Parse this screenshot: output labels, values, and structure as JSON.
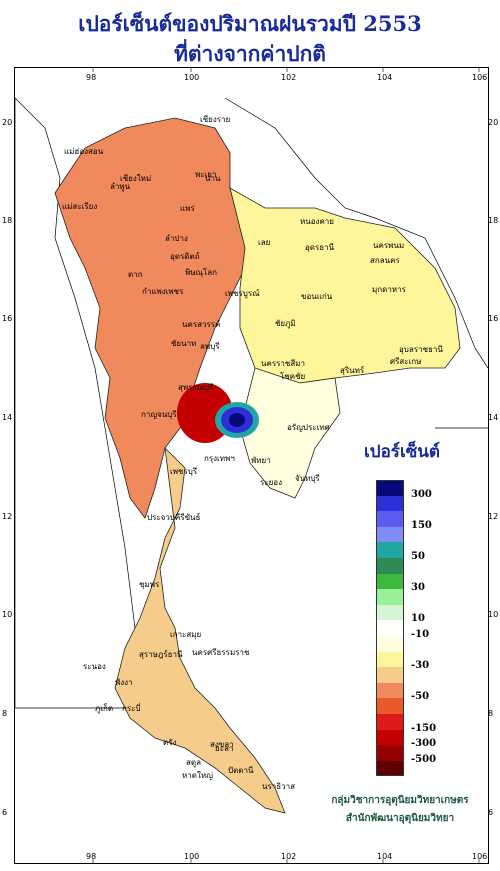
{
  "title_line1": "เปอร์เซ็นต์ของปริมาณฝนรวมปี  2553",
  "title_line2": "ที่ต่างจากค่าปกติ",
  "x_ticks": [
    "98",
    "100",
    "102",
    "104",
    "106"
  ],
  "y_ticks": [
    "20",
    "18",
    "16",
    "14",
    "12",
    "10",
    "8",
    "6"
  ],
  "legend": {
    "title": "เปอร์เซ็นต์",
    "colors": [
      "#08087a",
      "#2f2fd9",
      "#5c5cf0",
      "#7f8cf6",
      "#21a5a5",
      "#2e8b57",
      "#3cb83c",
      "#99ee99",
      "#d6f5d6",
      "#ffffff",
      "#ffffe0",
      "#fff59a",
      "#f5cc8a",
      "#f08a5d",
      "#e85a2a",
      "#e01a1a",
      "#c40000",
      "#960000",
      "#5e0000"
    ],
    "labels": [
      "300",
      "150",
      "50",
      "30",
      "10",
      "-10",
      "-30",
      "-50",
      "-150",
      "-300",
      "-500"
    ]
  },
  "credit_line1": "กลุ่มวิชาการอุตุนิยมวิทยาเกษตร",
  "credit_line2": "สำนักพัฒนาอุตุนิยมวิทยา",
  "places": [
    {
      "name": "เชียงราย"
    },
    {
      "name": "เชียงใหม่"
    },
    {
      "name": "แม่ฮ่องสอน"
    },
    {
      "name": "ลำพูน"
    },
    {
      "name": "พะเยา"
    },
    {
      "name": "น่าน"
    },
    {
      "name": "แม่สะเรียง"
    },
    {
      "name": "แพร่"
    },
    {
      "name": "ลำปาง"
    },
    {
      "name": "อุตรดิตถ์"
    },
    {
      "name": "หนองคาย"
    },
    {
      "name": "เลย"
    },
    {
      "name": "อุดรธานี"
    },
    {
      "name": "นครพนม"
    },
    {
      "name": "สกลนคร"
    },
    {
      "name": "ตาก"
    },
    {
      "name": "พิษณุโลก"
    },
    {
      "name": "มุกดาหาร"
    },
    {
      "name": "กำแพงเพชร"
    },
    {
      "name": "เพชรบูรณ์"
    },
    {
      "name": "ขอนแก่น"
    },
    {
      "name": "นครสวรรค์"
    },
    {
      "name": "ชัยภูมิ"
    },
    {
      "name": "อุบลราชธานี"
    },
    {
      "name": "ชัยนาท"
    },
    {
      "name": "ลพบุรี"
    },
    {
      "name": "นครราชสีมา"
    },
    {
      "name": "สุรินทร์"
    },
    {
      "name": "สุพรรณบุรี"
    },
    {
      "name": "ศรีสะเกษ"
    },
    {
      "name": "กาญจนบุรี"
    },
    {
      "name": "โชคชัย"
    },
    {
      "name": "กรุงเทพฯ"
    },
    {
      "name": "อรัญประเทศ"
    },
    {
      "name": "เพชรบุรี"
    },
    {
      "name": "พัทยา"
    },
    {
      "name": "ระยอง"
    },
    {
      "name": "จันทบุรี"
    },
    {
      "name": "ประจวบคีรีขันธ์"
    },
    {
      "name": "ชุมพร"
    },
    {
      "name": "เกาะสมุย"
    },
    {
      "name": "สุราษฎร์ธานี"
    },
    {
      "name": "ระนอง"
    },
    {
      "name": "พังงา"
    },
    {
      "name": "นครศรีธรรมราช"
    },
    {
      "name": "ภูเก็ต"
    },
    {
      "name": "กระบี่"
    },
    {
      "name": "สงขลา"
    },
    {
      "name": "ตรัง"
    },
    {
      "name": "หาดใหญ่"
    },
    {
      "name": "สตูล"
    },
    {
      "name": "ปัตตานี"
    },
    {
      "name": "ยะลา"
    },
    {
      "name": "นราธิวาส"
    }
  ]
}
